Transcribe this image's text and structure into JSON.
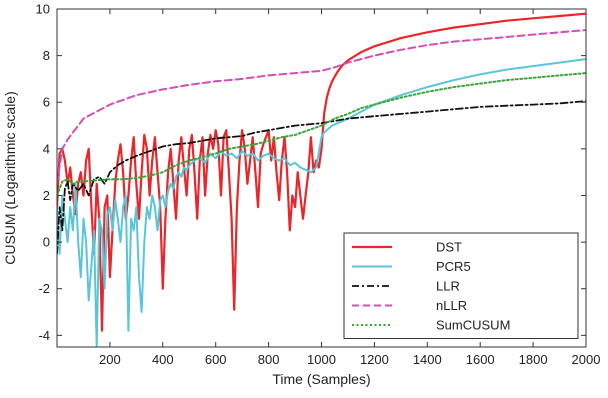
{
  "chart_data": {
    "type": "line",
    "title": "",
    "xlabel": "Time (Samples)",
    "ylabel": "CUSUM (Logarithmic scale)",
    "xlim": [
      0,
      2000
    ],
    "ylim": [
      -4.5,
      10
    ],
    "xticks": [
      200,
      400,
      600,
      800,
      1000,
      1200,
      1400,
      1600,
      1800,
      2000
    ],
    "yticks": [
      -4,
      -2,
      0,
      2,
      4,
      6,
      8,
      10
    ],
    "grid": false,
    "legend_position": "bottom-right",
    "series": [
      {
        "name": "DST",
        "color": "#e8262b",
        "dash": "solid",
        "width": 2.2,
        "x": [
          0,
          10,
          20,
          30,
          40,
          50,
          60,
          70,
          80,
          90,
          100,
          110,
          120,
          130,
          140,
          150,
          160,
          170,
          180,
          190,
          200,
          210,
          220,
          230,
          240,
          250,
          260,
          270,
          280,
          290,
          300,
          310,
          320,
          330,
          340,
          350,
          360,
          370,
          380,
          390,
          400,
          410,
          420,
          430,
          440,
          450,
          460,
          470,
          480,
          490,
          500,
          510,
          520,
          530,
          540,
          550,
          560,
          570,
          580,
          590,
          600,
          610,
          620,
          630,
          640,
          650,
          660,
          670,
          680,
          690,
          700,
          710,
          720,
          730,
          740,
          750,
          760,
          770,
          780,
          790,
          800,
          810,
          820,
          830,
          840,
          850,
          860,
          870,
          880,
          890,
          900,
          910,
          920,
          930,
          940,
          950,
          960,
          970,
          980,
          990,
          1000,
          1010,
          1020,
          1030,
          1040,
          1050,
          1060,
          1080,
          1100,
          1150,
          1200,
          1300,
          1400,
          1500,
          1600,
          1700,
          1800,
          1900,
          2000
        ],
        "values": [
          1.5,
          3.8,
          4.0,
          3.5,
          2.5,
          3.2,
          2.0,
          1.2,
          2.5,
          3.0,
          2.0,
          3.5,
          4.0,
          1.5,
          -0.5,
          2.5,
          1.0,
          -3.8,
          1.5,
          2.0,
          -1.5,
          0.5,
          2.5,
          3.5,
          4.2,
          3.0,
          1.0,
          2.0,
          3.5,
          4.5,
          2.5,
          1.0,
          3.0,
          4.6,
          4.0,
          2.0,
          3.5,
          4.5,
          3.0,
          1.5,
          -2.0,
          1.0,
          3.0,
          4.0,
          2.5,
          1.0,
          3.5,
          4.5,
          3.2,
          2.0,
          4.0,
          4.6,
          3.0,
          1.0,
          3.5,
          4.5,
          2.0,
          3.8,
          4.6,
          4.0,
          4.8,
          4.2,
          2.0,
          4.5,
          4.8,
          3.0,
          1.0,
          -2.9,
          1.5,
          3.5,
          4.8,
          4.0,
          2.5,
          3.5,
          4.5,
          3.0,
          1.5,
          3.8,
          4.2,
          4.5,
          4.8,
          3.5,
          4.5,
          3.0,
          1.8,
          3.5,
          4.5,
          3.0,
          0.5,
          2.0,
          1.5,
          3.0,
          2.0,
          1.0,
          2.0,
          3.0,
          4.5,
          3.0,
          3.5,
          3.2,
          4.0,
          5.5,
          6.2,
          6.6,
          6.9,
          7.1,
          7.3,
          7.6,
          7.8,
          8.15,
          8.4,
          8.75,
          9.0,
          9.2,
          9.35,
          9.5,
          9.6,
          9.7,
          9.8
        ]
      },
      {
        "name": "PCR5",
        "color": "#5bc5d8",
        "dash": "solid",
        "width": 2.0,
        "x": [
          0,
          10,
          20,
          30,
          40,
          50,
          60,
          70,
          80,
          90,
          100,
          110,
          120,
          130,
          140,
          150,
          160,
          170,
          180,
          190,
          200,
          210,
          220,
          230,
          240,
          250,
          260,
          270,
          280,
          290,
          300,
          310,
          320,
          330,
          340,
          350,
          360,
          370,
          380,
          390,
          400,
          410,
          420,
          430,
          440,
          450,
          460,
          470,
          480,
          490,
          500,
          520,
          540,
          560,
          580,
          600,
          620,
          640,
          660,
          680,
          700,
          720,
          740,
          760,
          780,
          800,
          820,
          840,
          860,
          880,
          900,
          920,
          940,
          960,
          980,
          1000,
          1010,
          1020,
          1030,
          1040,
          1050,
          1060,
          1080,
          1100,
          1150,
          1200,
          1300,
          1400,
          1500,
          1600,
          1700,
          1800,
          1900,
          2000
        ],
        "values": [
          1.5,
          -0.5,
          2.0,
          1.0,
          0.0,
          1.5,
          0.5,
          2.5,
          0.0,
          -1.5,
          1.0,
          0.0,
          -2.5,
          -1.0,
          0.5,
          -4.5,
          1.0,
          0.5,
          -2.0,
          1.2,
          1.5,
          0.5,
          1.8,
          1.0,
          0.0,
          1.5,
          2.0,
          -3.8,
          1.0,
          0.5,
          1.5,
          -1.5,
          -3.0,
          0.0,
          1.5,
          1.0,
          2.0,
          1.5,
          0.5,
          1.8,
          2.0,
          1.5,
          2.2,
          2.5,
          2.3,
          2.8,
          3.0,
          2.8,
          3.2,
          3.1,
          3.3,
          3.5,
          3.6,
          3.4,
          3.8,
          3.6,
          3.9,
          3.7,
          3.8,
          3.6,
          3.9,
          3.7,
          3.8,
          3.5,
          3.7,
          3.8,
          3.6,
          3.5,
          3.6,
          3.3,
          3.4,
          3.2,
          3.1,
          3.0,
          3.2,
          4.5,
          4.7,
          4.8,
          4.9,
          5.0,
          5.05,
          5.1,
          5.2,
          5.3,
          5.6,
          5.9,
          6.3,
          6.65,
          6.95,
          7.2,
          7.4,
          7.55,
          7.7,
          7.85
        ]
      },
      {
        "name": "LLR",
        "color": "#111111",
        "dash": "dashdot",
        "width": 1.8,
        "x": [
          0,
          10,
          20,
          30,
          40,
          50,
          60,
          80,
          100,
          120,
          140,
          160,
          180,
          200,
          230,
          260,
          300,
          350,
          400,
          450,
          500,
          550,
          600,
          650,
          700,
          750,
          800,
          850,
          900,
          950,
          1000,
          1050,
          1100,
          1150,
          1200,
          1300,
          1400,
          1500,
          1600,
          1700,
          1800,
          1900,
          2000
        ],
        "values": [
          -0.5,
          1.5,
          0.5,
          2.3,
          2.6,
          1.8,
          2.5,
          2.2,
          2.5,
          2.0,
          2.7,
          2.8,
          2.5,
          3.0,
          3.3,
          3.5,
          3.7,
          3.9,
          4.1,
          4.2,
          4.25,
          4.35,
          4.45,
          4.5,
          4.55,
          4.7,
          4.8,
          4.9,
          5.0,
          5.05,
          5.1,
          5.2,
          5.3,
          5.35,
          5.4,
          5.5,
          5.6,
          5.7,
          5.8,
          5.85,
          5.9,
          5.95,
          6.05
        ]
      },
      {
        "name": "nLLR",
        "color": "#d44fb4",
        "dash": "dashed",
        "width": 2.0,
        "x": [
          0,
          20,
          40,
          60,
          80,
          100,
          150,
          200,
          250,
          300,
          400,
          500,
          600,
          700,
          800,
          900,
          1000,
          1050,
          1100,
          1200,
          1300,
          1400,
          1500,
          1600,
          1700,
          1800,
          1900,
          2000
        ],
        "values": [
          2.5,
          4.0,
          4.4,
          4.7,
          5.0,
          5.3,
          5.6,
          5.9,
          6.1,
          6.3,
          6.55,
          6.75,
          6.9,
          7.0,
          7.15,
          7.25,
          7.35,
          7.5,
          7.7,
          8.0,
          8.25,
          8.45,
          8.6,
          8.7,
          8.8,
          8.9,
          9.0,
          9.1
        ]
      },
      {
        "name": "SumCUSUM",
        "color": "#3aa63a",
        "dash": "dotted",
        "width": 2.0,
        "x": [
          0,
          20,
          40,
          60,
          80,
          100,
          150,
          200,
          250,
          300,
          350,
          400,
          450,
          500,
          550,
          600,
          650,
          700,
          750,
          800,
          850,
          900,
          950,
          1000,
          1050,
          1100,
          1150,
          1200,
          1300,
          1400,
          1500,
          1600,
          1700,
          1800,
          1900,
          2000
        ],
        "values": [
          2.0,
          2.6,
          2.7,
          2.5,
          2.6,
          2.6,
          2.65,
          2.7,
          2.7,
          2.75,
          2.85,
          3.0,
          3.3,
          3.5,
          3.65,
          3.8,
          4.0,
          4.1,
          4.2,
          4.35,
          4.5,
          4.6,
          4.8,
          5.0,
          5.3,
          5.5,
          5.75,
          5.9,
          6.2,
          6.45,
          6.65,
          6.8,
          6.95,
          7.05,
          7.15,
          7.25
        ]
      }
    ]
  }
}
